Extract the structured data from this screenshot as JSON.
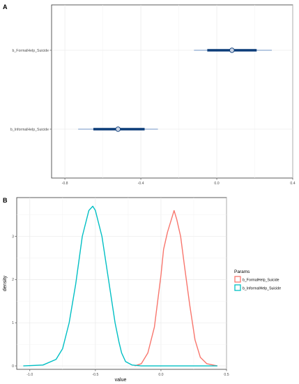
{
  "chart_data": [
    {
      "panel_label": "A",
      "type": "interval",
      "categories": [
        "b_FormalHelp_Suicide",
        "b_InformalHelp_Suicide"
      ],
      "intervals": [
        {
          "name": "b_FormalHelp_Suicide",
          "point": 0.08,
          "inner": [
            -0.05,
            0.21
          ],
          "outer": [
            -0.12,
            0.29
          ]
        },
        {
          "name": "b_InformalHelp_Suicide",
          "point": -0.52,
          "inner": [
            -0.65,
            -0.38
          ],
          "outer": [
            -0.73,
            -0.31
          ]
        }
      ],
      "x_ticks": [
        "-0.8",
        "-0.4",
        "0.0",
        "0.4"
      ],
      "xlim": [
        -0.87,
        0.4
      ],
      "grid": true,
      "colors": {
        "interval": "#0b3c78",
        "point_fill": "#c9d3e4",
        "outer_line": "#6f93c4"
      }
    },
    {
      "panel_label": "B",
      "type": "line",
      "xlabel": "value",
      "ylabel": "density",
      "x_ticks": [
        "-1.0",
        "-0.5",
        "0.0",
        "0.5"
      ],
      "y_ticks": [
        "0",
        "1",
        "2",
        "3"
      ],
      "xlim": [
        -1.1,
        0.5
      ],
      "ylim": [
        -0.08,
        3.9
      ],
      "grid": true,
      "legend": {
        "title": "Params",
        "position": "right"
      },
      "series": [
        {
          "name": "b_FormalHelp_Suicide",
          "color": "#f8766d",
          "x": [
            -0.2,
            -0.15,
            -0.1,
            -0.05,
            0.0,
            0.02,
            0.05,
            0.08,
            0.1,
            0.12,
            0.15,
            0.18,
            0.22,
            0.26,
            0.3,
            0.35,
            0.43
          ],
          "y": [
            0.0,
            0.05,
            0.3,
            0.9,
            2.1,
            2.7,
            3.1,
            3.4,
            3.6,
            3.4,
            3.0,
            2.3,
            1.4,
            0.6,
            0.2,
            0.05,
            0.0
          ]
        },
        {
          "name": "b_InformalHelp_Suicide",
          "color": "#00bfc4",
          "x": [
            -1.05,
            -0.9,
            -0.8,
            -0.75,
            -0.7,
            -0.65,
            -0.6,
            -0.55,
            -0.52,
            -0.5,
            -0.45,
            -0.4,
            -0.35,
            -0.32,
            -0.3,
            -0.27,
            -0.22,
            -0.15,
            0.0,
            0.43
          ],
          "y": [
            0.0,
            0.02,
            0.15,
            0.4,
            1.0,
            1.9,
            3.0,
            3.6,
            3.7,
            3.6,
            3.0,
            2.0,
            1.0,
            0.55,
            0.3,
            0.1,
            0.02,
            0.0,
            0.0,
            0.0
          ]
        }
      ]
    }
  ]
}
